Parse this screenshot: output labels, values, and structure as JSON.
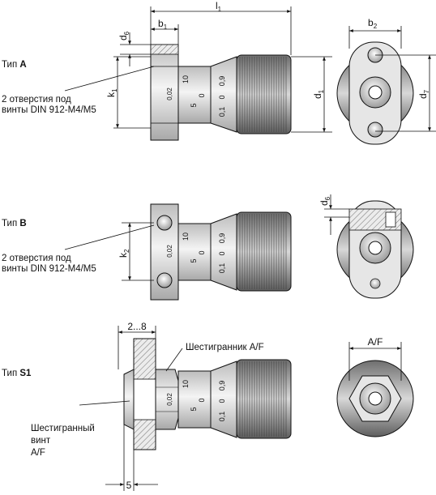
{
  "type_a": {
    "prefix": "Тип",
    "code": "A",
    "holes_line1": "2 отверстия под",
    "holes_line2": "винты DIN 912-M4/M5"
  },
  "type_b": {
    "prefix": "Тип",
    "code": "B",
    "holes_line1": "2 отверстия под",
    "holes_line2": "винты DIN 912-M4/M5"
  },
  "type_s1": {
    "prefix": "Тип",
    "code": "S1",
    "hex_af": "Шестигранник A/F",
    "grub_line1": "Шестигранный",
    "grub_line2": "винт",
    "grub_line3": "A/F"
  },
  "dims": {
    "l1": "l",
    "l1_sub": "1",
    "b1": "b",
    "b1_sub": "1",
    "b2": "b",
    "b2_sub": "2",
    "d6": "d",
    "d6_sub": "6",
    "d1": "d",
    "d1_sub": "1",
    "d7": "d",
    "d7_sub": "7",
    "k1": "k",
    "k1_sub": "1",
    "k2": "k",
    "k2_sub": "2",
    "range": "2...8",
    "five": "5",
    "af": "A/F"
  },
  "scale": {
    "v10": "10",
    "v5": "5",
    "v0": "0",
    "v002": "0,02",
    "v09": "0,9",
    "v01": "0,1"
  },
  "colors": {
    "steel": "#d9d9d9",
    "steel_dark": "#9a9a9a",
    "knurl": "#8c8c8c",
    "line": "#111111"
  }
}
